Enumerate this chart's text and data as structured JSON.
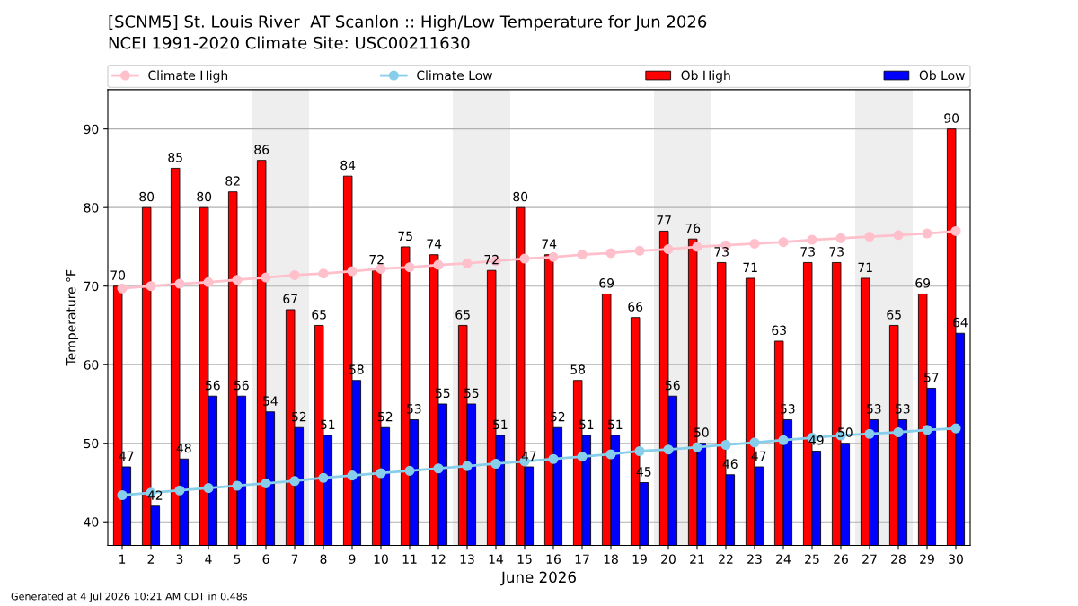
{
  "chart_data": {
    "type": "bar",
    "title": "[SCNM5] St. Louis River  AT Scanlon :: High/Low Temperature for Jun 2026",
    "subtitle": "NCEI 1991-2020 Climate Site: USC00211630",
    "xlabel": "June 2026",
    "ylabel": "Temperature °F",
    "x": [
      1,
      2,
      3,
      4,
      5,
      6,
      7,
      8,
      9,
      10,
      11,
      12,
      13,
      14,
      15,
      16,
      17,
      18,
      19,
      20,
      21,
      22,
      23,
      24,
      25,
      26,
      27,
      28,
      29,
      30
    ],
    "xlim": [
      0.5,
      30.5
    ],
    "xticks": [
      1,
      2,
      3,
      4,
      5,
      6,
      7,
      8,
      9,
      10,
      11,
      12,
      13,
      14,
      15,
      16,
      17,
      18,
      19,
      20,
      21,
      22,
      23,
      24,
      25,
      26,
      27,
      28,
      29,
      30
    ],
    "ylim": [
      37,
      95
    ],
    "yticks": [
      40,
      50,
      60,
      70,
      80,
      90
    ],
    "grid": "y",
    "legend": "top",
    "marker": "circle",
    "series": [
      {
        "name": "Climate High",
        "type": "line",
        "color": "#ffc0cb",
        "values": [
          69.7,
          70.0,
          70.3,
          70.5,
          70.8,
          71.1,
          71.4,
          71.6,
          71.9,
          72.2,
          72.4,
          72.7,
          72.9,
          73.2,
          73.5,
          73.7,
          74.0,
          74.2,
          74.5,
          74.7,
          75.0,
          75.2,
          75.4,
          75.6,
          75.9,
          76.1,
          76.3,
          76.5,
          76.7,
          77.0
        ]
      },
      {
        "name": "Climate Low",
        "type": "line",
        "color": "#87ceeb",
        "values": [
          43.4,
          43.7,
          44.0,
          44.3,
          44.6,
          44.9,
          45.2,
          45.6,
          45.9,
          46.2,
          46.5,
          46.8,
          47.1,
          47.4,
          47.7,
          48.0,
          48.3,
          48.6,
          49.0,
          49.2,
          49.5,
          49.8,
          50.1,
          50.4,
          50.7,
          51.0,
          51.2,
          51.4,
          51.7,
          51.9
        ]
      },
      {
        "name": "Ob High",
        "color": "#ff0000",
        "values": [
          70,
          80,
          85,
          80,
          82,
          86,
          67,
          65,
          84,
          72,
          75,
          74,
          65,
          72,
          80,
          74,
          58,
          69,
          66,
          77,
          76,
          73,
          71,
          63,
          73,
          73,
          71,
          65,
          69,
          90
        ],
        "value_labels": [
          "70",
          "80",
          "85",
          "80",
          "82",
          "86",
          "67",
          "65",
          "84",
          "72",
          "75",
          "74",
          "65",
          "72",
          "80",
          "74",
          "58",
          "69",
          "66",
          "77",
          "76",
          "73",
          "71",
          "63",
          "73",
          "73",
          "71",
          "65",
          "69",
          "90"
        ]
      },
      {
        "name": "Ob Low",
        "color": "#0000ff",
        "values": [
          47,
          42,
          48,
          56,
          56,
          54,
          52,
          51,
          58,
          52,
          53,
          55,
          55,
          51,
          47,
          52,
          51,
          51,
          45,
          56,
          50,
          46,
          47,
          53,
          49,
          50,
          53,
          53,
          57,
          64
        ],
        "value_labels": [
          "47",
          "42",
          "48",
          "56",
          "56",
          "54",
          "52",
          "51",
          "58",
          "52",
          "53",
          "55",
          "55",
          "51",
          "47",
          "52",
          "51",
          "51",
          "45",
          "56",
          "50",
          "46",
          "47",
          "53",
          "49",
          "50",
          "53",
          "53",
          "57",
          "64"
        ]
      }
    ],
    "bands": [
      {
        "axis": "x",
        "from": 5.5,
        "to": 7.5,
        "color": "#eeeeee"
      },
      {
        "axis": "x",
        "from": 12.5,
        "to": 14.5,
        "color": "#eeeeee"
      },
      {
        "axis": "x",
        "from": 19.5,
        "to": 21.5,
        "color": "#eeeeee"
      },
      {
        "axis": "x",
        "from": 26.5,
        "to": 28.5,
        "color": "#eeeeee"
      }
    ],
    "annotations": [
      "Generated at 4 Jul 2026 10:21 AM CDT in 0.48s"
    ]
  }
}
